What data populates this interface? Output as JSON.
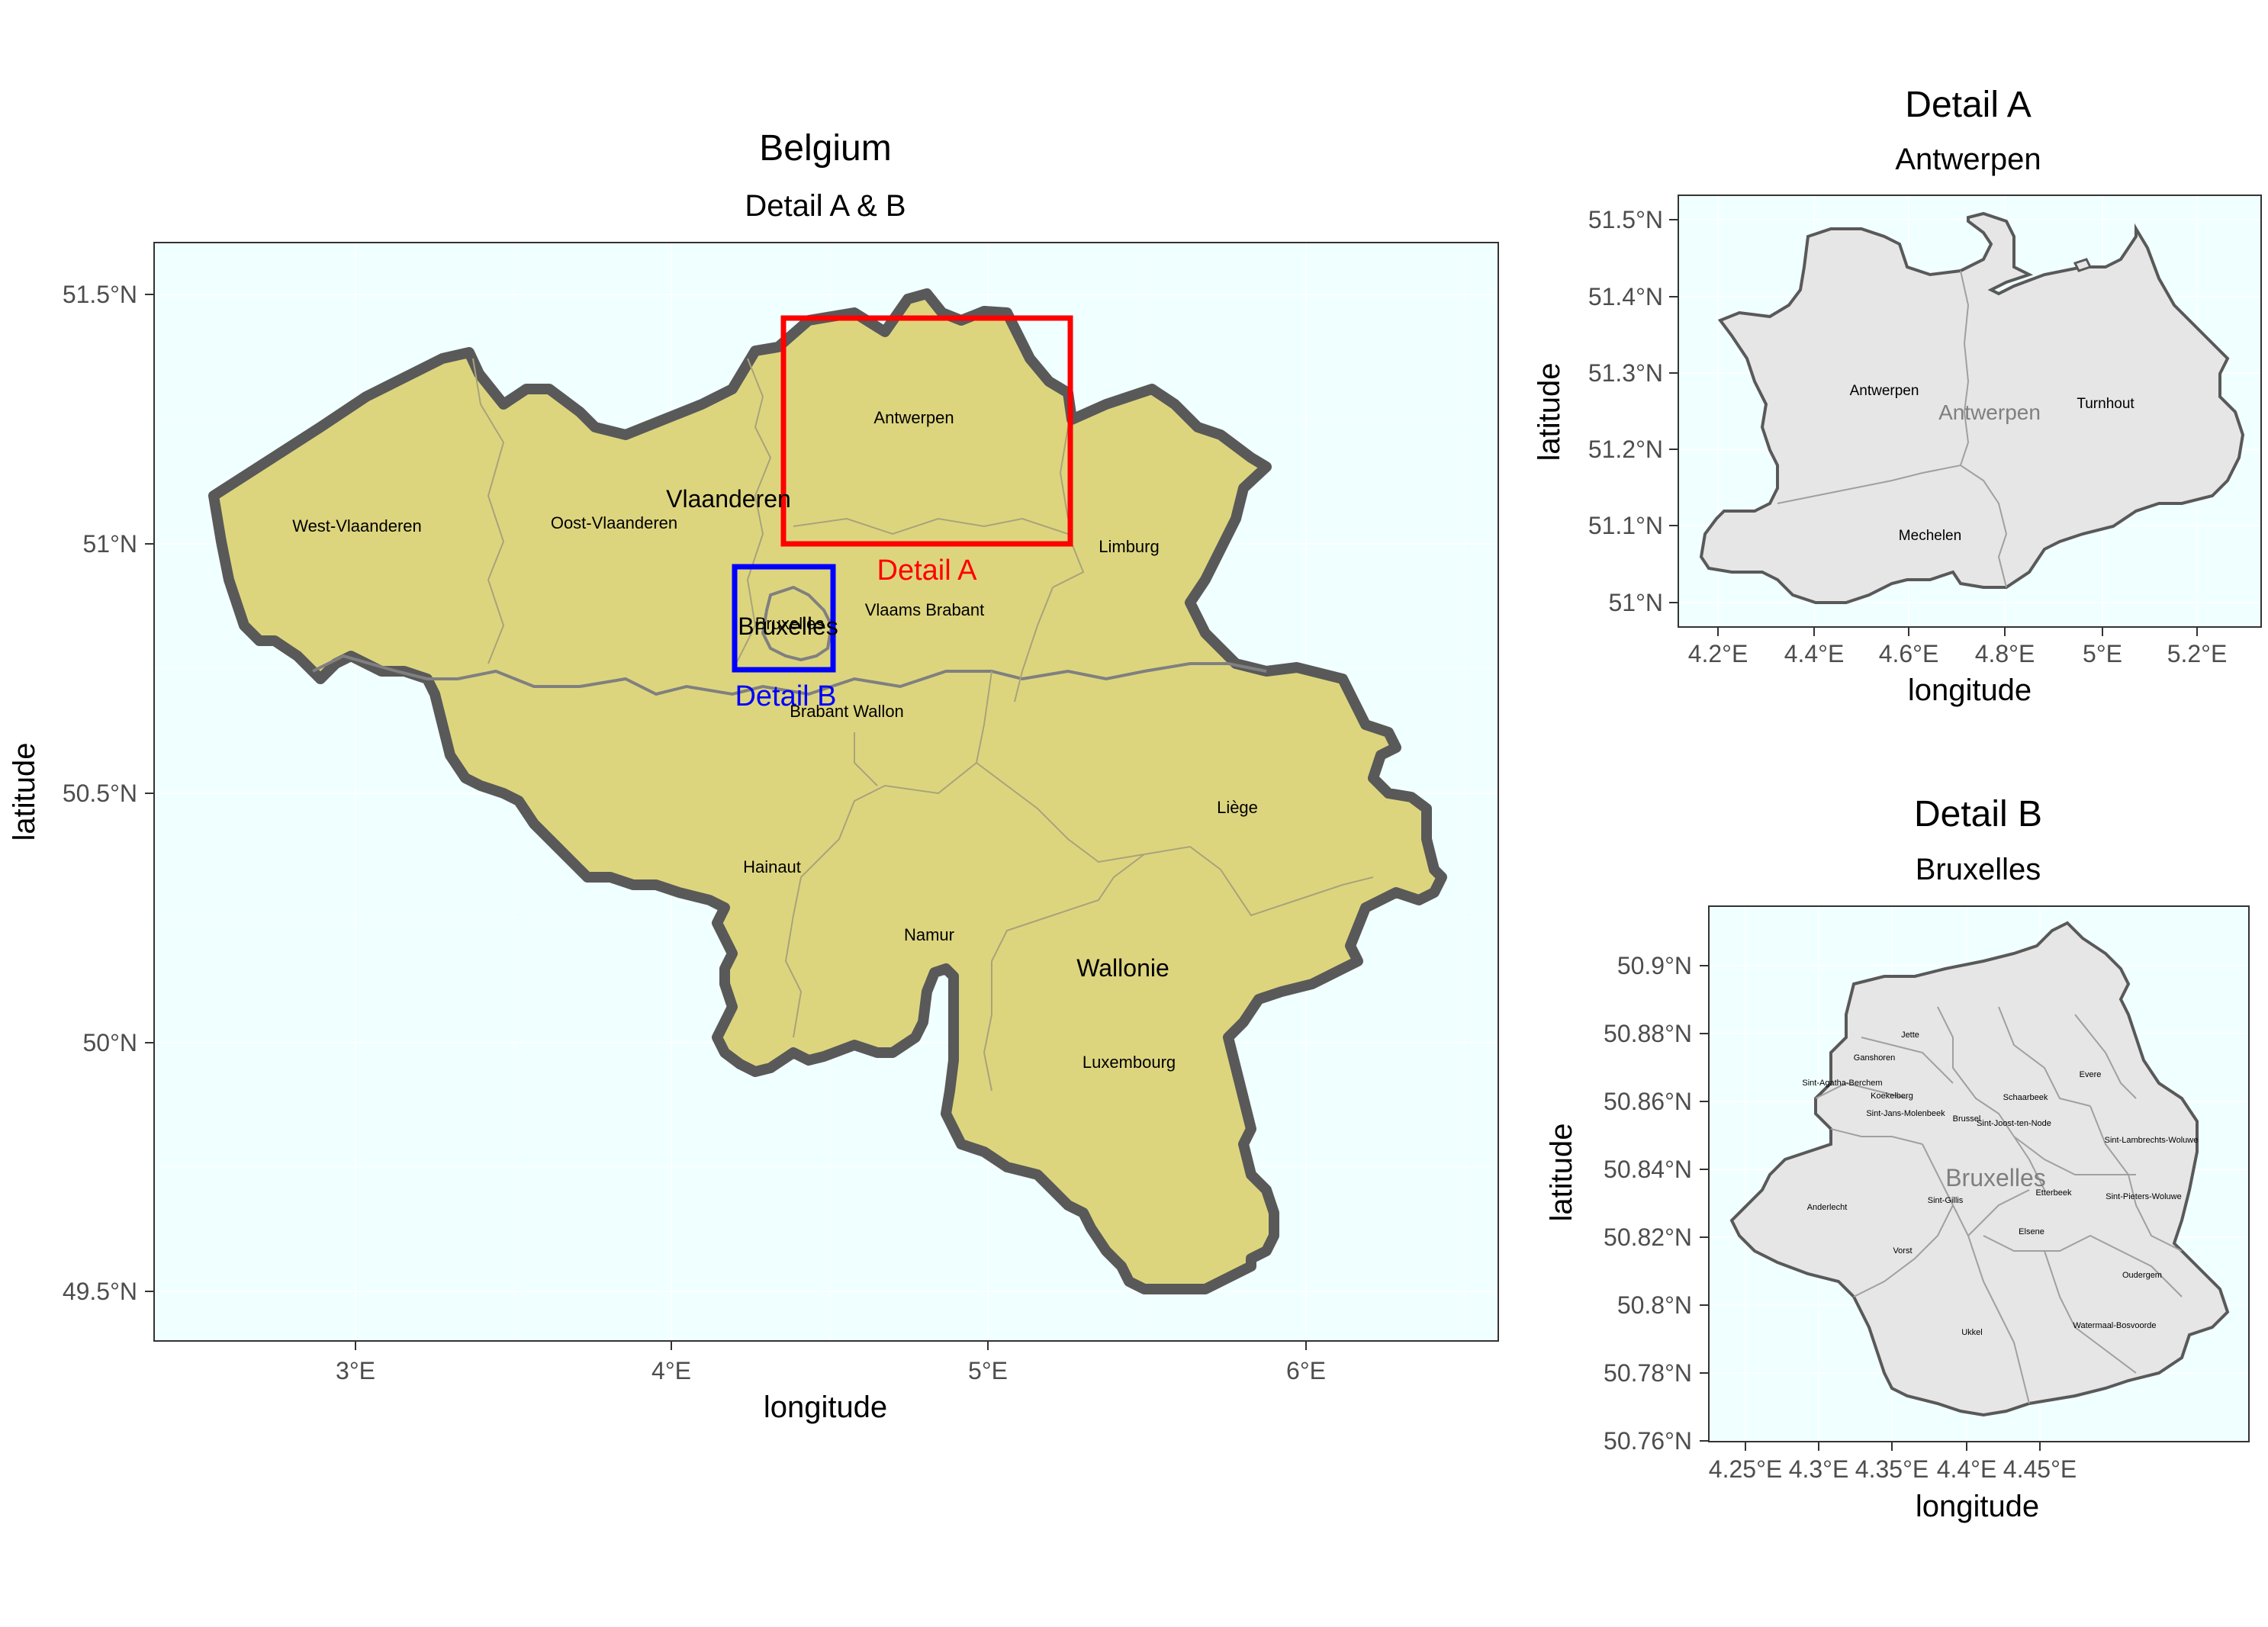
{
  "main_map": {
    "title": "Belgium",
    "subtitle": "Detail A & B",
    "xlabel": "longitude",
    "ylabel": "latitude",
    "x_ticks": [
      "3°E",
      "4°E",
      "5°E",
      "6°E"
    ],
    "y_ticks": [
      "51.5°N",
      "51°N",
      "50.5°N",
      "50°N",
      "49.5°N"
    ],
    "regions": [
      "Vlaanderen",
      "Wallonie"
    ],
    "region_overlay": "Bruxelles",
    "provinces": [
      "West-Vlaanderen",
      "Oost-Vlaanderen",
      "Antwerpen",
      "Limburg",
      "Vlaams Brabant",
      "Brabant Wallon",
      "Hainaut",
      "Namur",
      "Liège",
      "Luxembourg",
      "Bruxelles"
    ],
    "detail_a_label": "Detail A",
    "detail_b_label": "Detail B",
    "colors": {
      "panel": "#f0ffff",
      "land": "#ddd57e",
      "border": "#595959",
      "detail_a": "#ff0000",
      "detail_b": "#0000ff"
    },
    "xlim": [
      2.37,
      6.6
    ],
    "ylim": [
      49.4,
      51.59
    ]
  },
  "detail_a": {
    "title": "Detail A",
    "subtitle": "Antwerpen",
    "xlabel": "longitude",
    "ylabel": "latitude",
    "x_ticks": [
      "4.2°E",
      "4.4°E",
      "4.6°E",
      "4.8°E",
      "5°E",
      "5.2°E"
    ],
    "y_ticks": [
      "51.5°N",
      "51.4°N",
      "51.3°N",
      "51.2°N",
      "51.1°N",
      "51°N"
    ],
    "overlay_label": "Antwerpen",
    "districts": [
      "Antwerpen",
      "Turnhout",
      "Mechelen"
    ],
    "colors": {
      "land": "#e6e6e6",
      "border": "#595959"
    }
  },
  "detail_b": {
    "title": "Detail B",
    "subtitle": "Bruxelles",
    "xlabel": "longitude",
    "ylabel": "latitude",
    "x_ticks": [
      "4.25°E",
      "4.3°E",
      "4.35°E",
      "4.4°E",
      "4.45°E"
    ],
    "y_ticks": [
      "50.9°N",
      "50.88°N",
      "50.86°N",
      "50.84°N",
      "50.82°N",
      "50.8°N",
      "50.78°N",
      "50.76°N"
    ],
    "overlay_label": "Bruxelles",
    "communes": [
      "Jette",
      "Ganshoren",
      "Sint-Agatha-Berchem",
      "Koekelberg",
      "Sint-Jans-Molenbeek",
      "Brussel",
      "Schaarbeek",
      "Evere",
      "Sint-Joost-ten-Node",
      "Sint-Lambrechts-Woluwe",
      "Etterbeek",
      "Sint-Pieters-Woluwe",
      "Anderlecht",
      "Sint-Gillis",
      "Elsene",
      "Vorst",
      "Oudergem",
      "Ukkel",
      "Watermaal-Bosvoorde"
    ],
    "colors": {
      "land": "#e6e6e6",
      "border": "#595959"
    }
  }
}
